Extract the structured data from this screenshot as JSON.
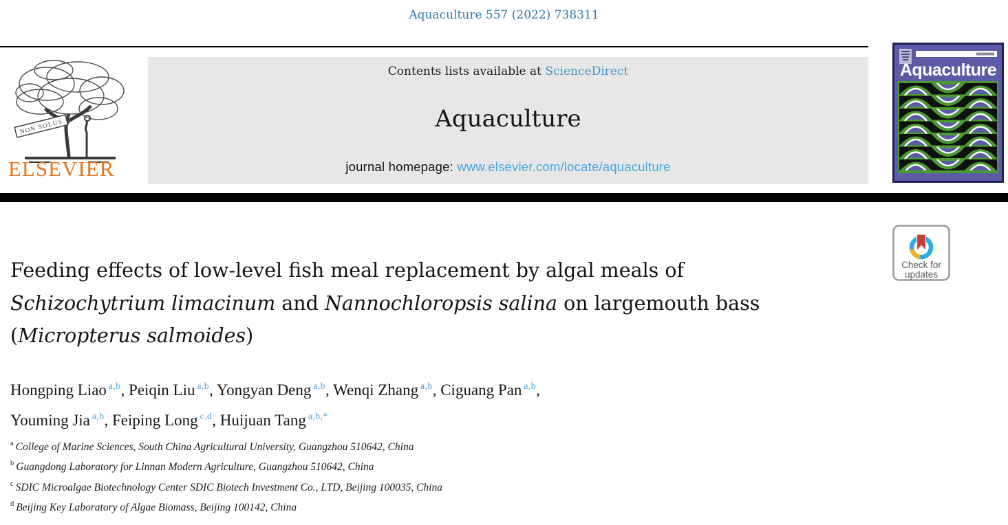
{
  "colors": {
    "citation-blue": "#2d79a8",
    "link-blue": "#4293c8",
    "url-blue": "#49a6e0",
    "sup-blue": "#4aa0d8",
    "elsevier-orange": "#e8761d",
    "cover-indigo": "#5c5ca6",
    "cover-green": "#4a9b2f",
    "cover-navy": "#1e1e5a",
    "badge-red": "#d03a34",
    "badge-ring-blue": "#2bace2",
    "badge-ring-yellow": "#f0b323",
    "badge-text-gray": "#595a5c"
  },
  "citation": "Aquaculture 557 (2022) 738311",
  "header": {
    "contents_prefix": "Contents lists available at ",
    "contents_link": "ScienceDirect",
    "journal_name": "Aquaculture",
    "homepage_prefix": "journal homepage: ",
    "homepage_url": "www.elsevier.com/locate/aquaculture"
  },
  "publisher": {
    "name": "ELSEVIER",
    "motto": "NON SOLUS"
  },
  "cover": {
    "title": "Aquaculture"
  },
  "badge": {
    "line1": "Check for",
    "line2": "updates"
  },
  "article": {
    "title_lines": [
      [
        {
          "t": "Feeding effects of low-level fish meal replacement by algal meals of"
        }
      ],
      [
        {
          "t": "Schizochytrium limacinum",
          "i": true
        },
        {
          "t": " and "
        },
        {
          "t": "Nannochloropsis salina",
          "i": true
        },
        {
          "t": " on largemouth bass"
        }
      ],
      [
        {
          "t": "("
        },
        {
          "t": "Micropterus salmoides",
          "i": true
        },
        {
          "t": ")"
        }
      ]
    ],
    "authors": [
      {
        "name": "Hongping Liao",
        "sup": "a,b"
      },
      {
        "name": "Peiqin Liu",
        "sup": "a,b"
      },
      {
        "name": "Yongyan Deng",
        "sup": "a,b"
      },
      {
        "name": "Wenqi Zhang",
        "sup": "a,b"
      },
      {
        "name": "Ciguang Pan",
        "sup": "a,b",
        "break_after": true
      },
      {
        "name": "Youming Jia",
        "sup": "a,b"
      },
      {
        "name": "Feiping Long",
        "sup": "c,d"
      },
      {
        "name": "Huijuan Tang",
        "sup": "a,b,*",
        "last": true
      }
    ],
    "affiliations": [
      {
        "label": "a",
        "text": "College of Marine Sciences, South China Agricultural University, Guangzhou 510642, China"
      },
      {
        "label": "b",
        "text": "Guangdong Laboratory for Linnan Modern Agriculture, Guangzhou 510642, China"
      },
      {
        "label": "c",
        "text": "SDIC Microalgae Biotechnology Center SDIC Biotech Investment Co., LTD, Beijing 100035, China"
      },
      {
        "label": "d",
        "text": "Beijing Key Laboratory of Algae Biomass, Beijing 100142, China"
      }
    ]
  }
}
